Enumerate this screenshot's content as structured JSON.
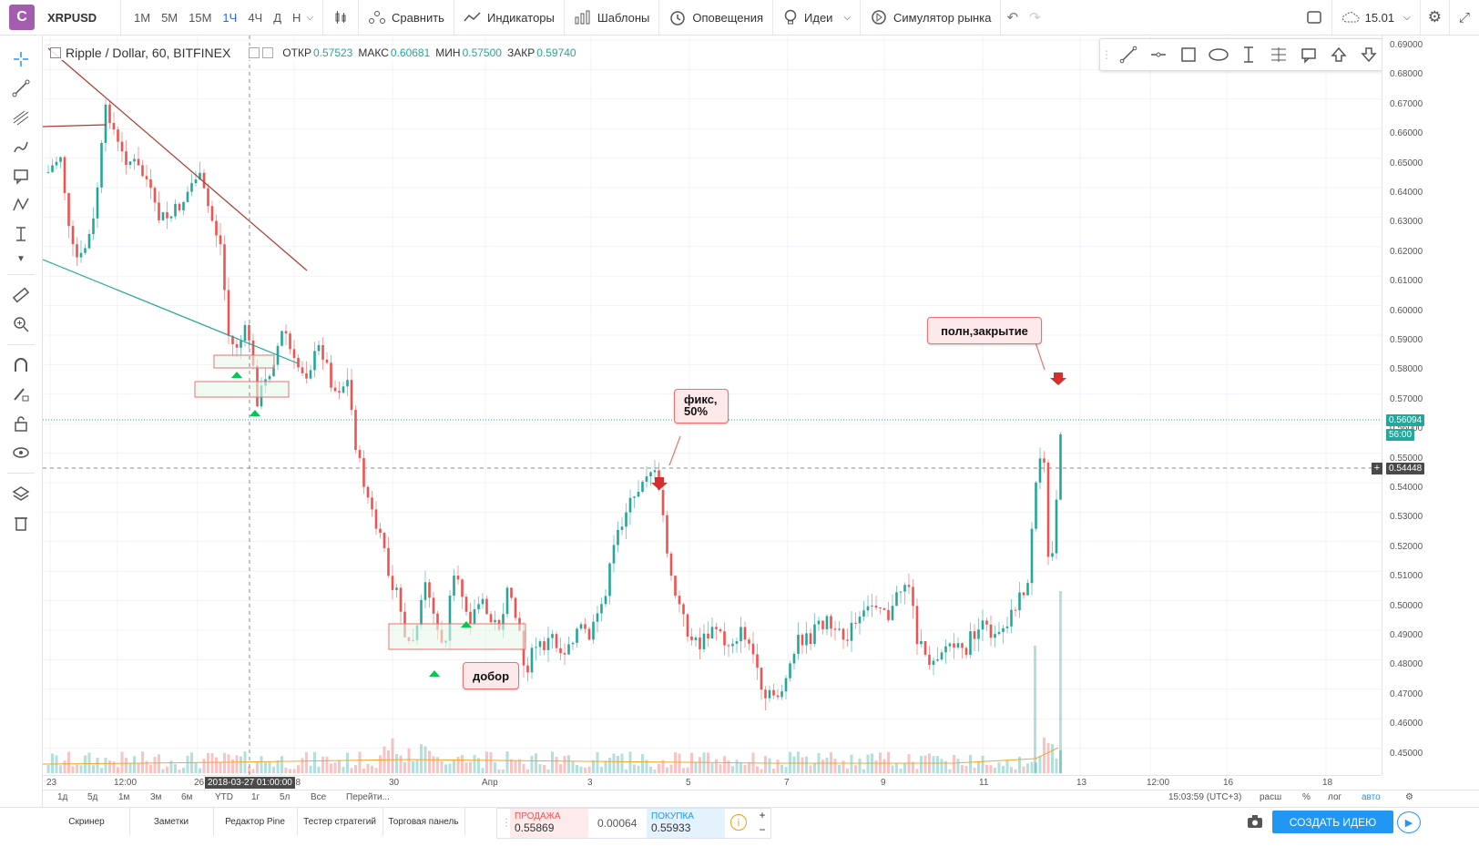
{
  "app": {
    "logo_letter": "C",
    "symbol": "XRPUSD"
  },
  "toolbar": {
    "intervals": [
      "1M",
      "5M",
      "15M",
      "1Ч",
      "4Ч",
      "Д",
      "Н"
    ],
    "active_interval": "1Ч",
    "compare": "Сравнить",
    "indicators": "Индикаторы",
    "templates": "Шаблоны",
    "alerts": "Оповещения",
    "ideas": "Идеи",
    "simulator": "Симулятор рынка",
    "countdown": "15.01"
  },
  "legend": {
    "name": "Ripple / Dollar, 60, BITFINEX",
    "open_label": "ОТКР",
    "open": "0.57523",
    "high_label": "МАКС",
    "high": "0.60681",
    "low_label": "МИН",
    "low": "0.57500",
    "close_label": "ЗАКР",
    "close": "0.59740"
  },
  "price_scale": {
    "ticks": [
      "0.69000",
      "0.68000",
      "0.67000",
      "0.66000",
      "0.65000",
      "0.64000",
      "0.63000",
      "0.62000",
      "0.61000",
      "0.60000",
      "0.59000",
      "0.58000",
      "0.57000",
      "0.56000",
      "0.55000",
      "0.54000",
      "0.53000",
      "0.52000",
      "0.51000",
      "0.50000",
      "0.49000",
      "0.48000",
      "0.47000",
      "0.46000",
      "0.45000"
    ],
    "last_price": "0.56094",
    "last_countdown": "56:00",
    "crosshair_price": "0.54448"
  },
  "time_axis": {
    "labels": [
      "23",
      "12:00",
      "26",
      "28",
      "30",
      "Апр",
      "3",
      "5",
      "7",
      "9",
      "11",
      "13",
      "12:00",
      "16",
      "18"
    ],
    "crosshair_time": "2018-03-27 01:00:00"
  },
  "annotations": {
    "dobor": "добор",
    "fix": "фикс, 50%",
    "full_close": "полн,закрытие"
  },
  "range_bar": {
    "ranges": [
      "1д",
      "5д",
      "1м",
      "3м",
      "6м",
      "YTD",
      "1г",
      "5л",
      "Все",
      "Перейти..."
    ],
    "clock": "15:03:59 (UTC+3)",
    "options": [
      "расш",
      "%",
      "лог",
      "авто"
    ]
  },
  "bottom": {
    "tabs": [
      "Скринер",
      "Заметки",
      "Редактор Pine",
      "Тестер стратегий",
      "Торговая панель"
    ],
    "sell_label": "ПРОДАЖА",
    "sell_price": "0.55869",
    "spread": "0.00064",
    "buy_label": "ПОКУПКА",
    "buy_price": "0.55933",
    "create_idea": "СОЗДАТЬ ИДЕЮ"
  },
  "colors": {
    "up": "#26a69a",
    "down": "#ef5350",
    "accent": "#2196f3",
    "fib_trend": "#b03a2e",
    "trend_teal": "#26a69a"
  }
}
